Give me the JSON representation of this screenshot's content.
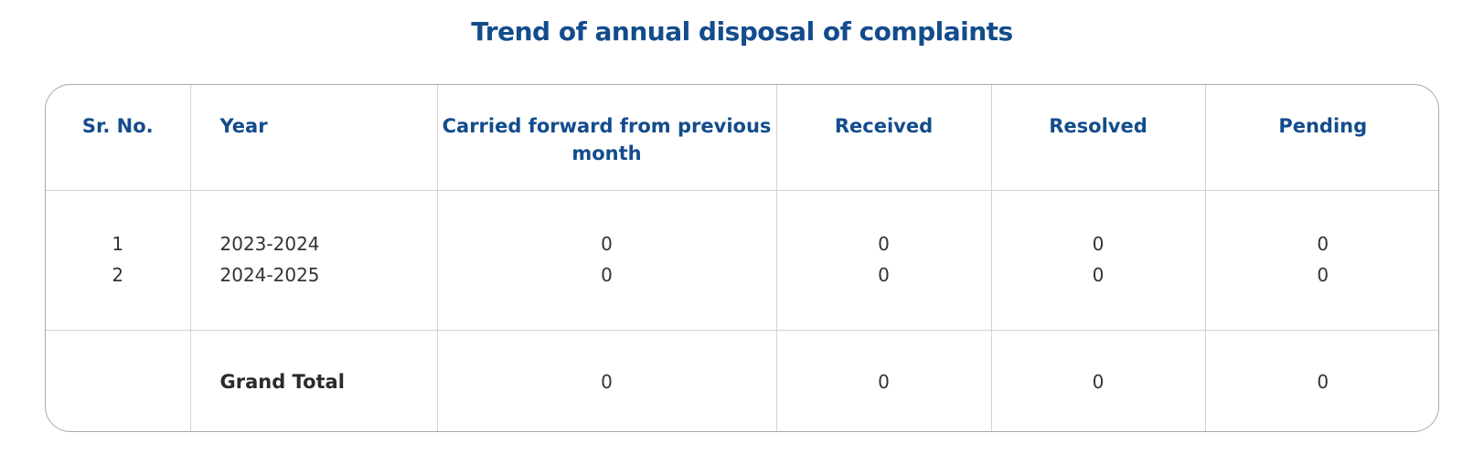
{
  "title": "Trend of annual disposal of complaints",
  "table": {
    "headers": {
      "sr_no": "Sr. No.",
      "year": "Year",
      "carried_forward": "Carried forward from previous month",
      "received": "Received",
      "resolved": "Resolved",
      "pending": "Pending"
    },
    "rows": [
      {
        "sr_no": "1",
        "year": "2023-2024",
        "carried_forward": "0",
        "received": "0",
        "resolved": "0",
        "pending": "0"
      },
      {
        "sr_no": "2",
        "year": "2024-2025",
        "carried_forward": "0",
        "received": "0",
        "resolved": "0",
        "pending": "0"
      }
    ],
    "total": {
      "label": "Grand Total",
      "carried_forward": "0",
      "received": "0",
      "resolved": "0",
      "pending": "0"
    }
  },
  "colors": {
    "heading": "#134c8c",
    "text": "#333333",
    "border": "#a9a9a9"
  }
}
